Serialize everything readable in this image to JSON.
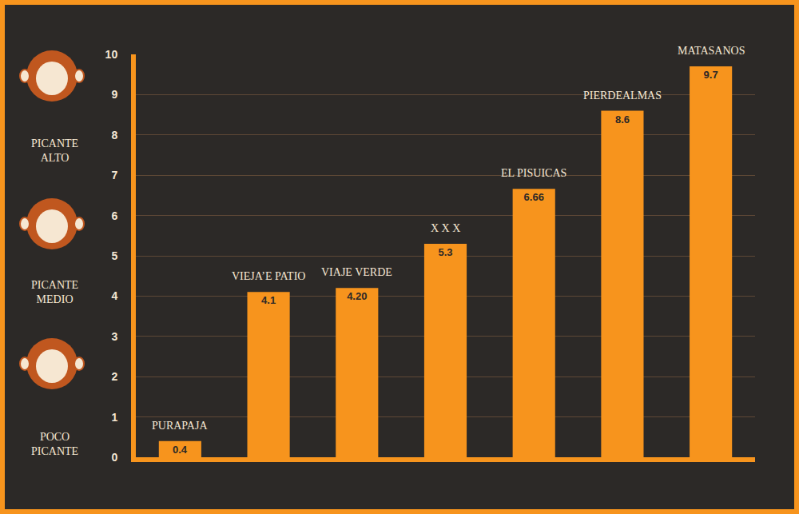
{
  "chart_data": {
    "type": "bar",
    "categories": [
      "PURAPAJA",
      "VIEJA’E PATIO",
      "VIAJE VERDE",
      "X X X",
      "EL PISUICAS",
      "PIERDEALMAS",
      "MATASANOS"
    ],
    "values": [
      0.4,
      4.1,
      4.2,
      5.3,
      6.66,
      8.6,
      9.7
    ],
    "value_labels": [
      "0.4",
      "4.1",
      "4.20",
      "5.3",
      "6.66",
      "8.6",
      "9.7"
    ],
    "color": "#f7941d",
    "ylim": [
      0,
      10
    ],
    "yticks": [
      0,
      1,
      2,
      3,
      4,
      5,
      6,
      7,
      8,
      9,
      10
    ],
    "grid": true,
    "data_labels": true,
    "tick_labels": "y",
    "annotations": [
      "PICANTE ALTO",
      "PICANTE MEDIO",
      "POCO PICANTE"
    ]
  }
}
